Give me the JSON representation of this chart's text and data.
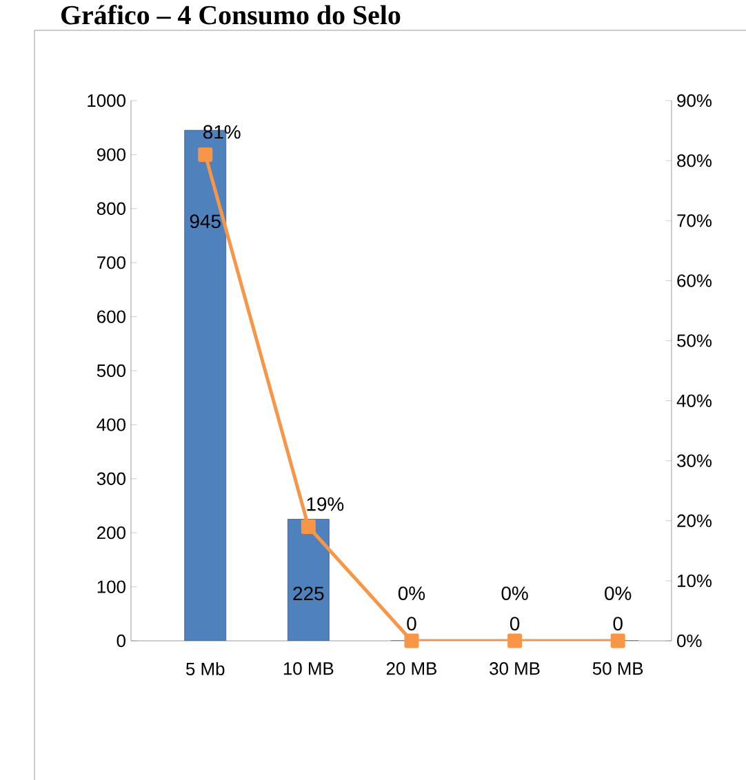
{
  "chart_data": {
    "type": "bar",
    "title": "Gráfico – 4 Consumo do Selo",
    "categories": [
      "5 Mb",
      "10 MB",
      "20 MB",
      "30 MB",
      "50 MB"
    ],
    "series": [
      {
        "color": "#4f81bd",
        "values": [
          945,
          225,
          0,
          0,
          0
        ],
        "value_labels": [
          "945",
          "225",
          "0",
          "0",
          "0"
        ]
      },
      {
        "type": "line",
        "axis": "y2",
        "color": "#f79646",
        "marker": "square",
        "values": [
          81,
          19,
          0,
          0,
          0
        ],
        "value_labels": [
          "81%",
          "19%",
          "0%",
          "0%",
          "0%"
        ]
      }
    ],
    "ylim": [
      0,
      1000
    ],
    "yticks": [
      0,
      100,
      200,
      300,
      400,
      500,
      600,
      700,
      800,
      900,
      1000
    ],
    "y2lim": [
      0,
      90
    ],
    "y2ticks": [
      {
        "value": 0,
        "label": "0%"
      },
      {
        "value": 10,
        "label": "10%"
      },
      {
        "value": 20,
        "label": "20%"
      },
      {
        "value": 30,
        "label": "30%"
      },
      {
        "value": 40,
        "label": "40%"
      },
      {
        "value": 50,
        "label": "50%"
      },
      {
        "value": 60,
        "label": "60%"
      },
      {
        "value": 70,
        "label": "70%"
      },
      {
        "value": 80,
        "label": "80%"
      },
      {
        "value": 90,
        "label": "90%"
      }
    ],
    "grid": false
  }
}
